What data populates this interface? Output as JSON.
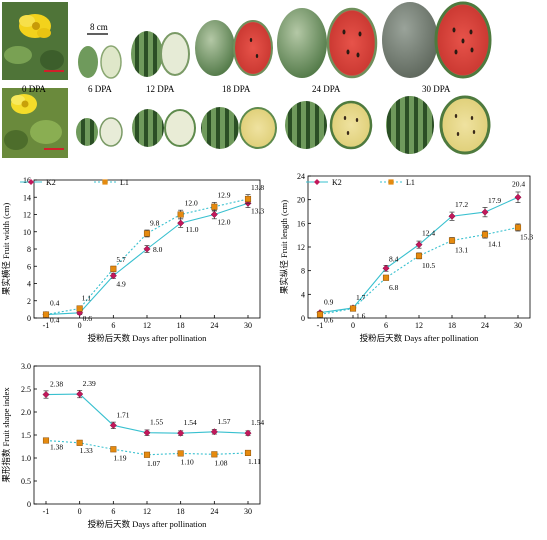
{
  "photo_panel": {
    "scale_label": "8 cm",
    "labels": [
      "0 DPA",
      "6 DPA",
      "12 DPA",
      "18 DPA",
      "24 DPA",
      "30 DPA"
    ],
    "colors": {
      "rind_light": "#8fae7c",
      "rind_dark": "#3f6e39",
      "stripe": "#24461f",
      "flesh_white": "#e8ecd8",
      "flesh_yellow": "#e9dc8e",
      "flesh_red": "#d8443c",
      "seed": "#2a1a12",
      "scale_bar": "#d0202a"
    }
  },
  "series_style": {
    "K2": {
      "color": "#38c0cf",
      "marker": "#c2185b",
      "dash": "solid"
    },
    "L1": {
      "color": "#38c0cf",
      "marker": "#e58a0f",
      "dash": "dotted"
    }
  },
  "chart_data": [
    {
      "type": "line",
      "x": [
        -1,
        0,
        6,
        12,
        18,
        24,
        30
      ],
      "xlabel": "授粉后天数 Days after pollination",
      "ylabel": "果实横径 Fruit width (cm)",
      "ylim": [
        0,
        16
      ],
      "yticks": [
        0,
        2,
        4,
        6,
        8,
        10,
        12,
        14,
        16
      ],
      "legend_position": "top-left",
      "series": [
        {
          "name": "K2",
          "values": [
            0.4,
            0.6,
            4.9,
            8.0,
            11.0,
            12.0,
            13.3
          ],
          "err": [
            0.1,
            0.2,
            0.3,
            0.4,
            0.5,
            0.5,
            0.5
          ]
        },
        {
          "name": "L1",
          "values": [
            0.4,
            1.1,
            5.7,
            9.8,
            12.0,
            12.9,
            13.8
          ],
          "err": [
            0.1,
            0.2,
            0.3,
            0.4,
            0.5,
            0.5,
            0.5
          ]
        }
      ],
      "data_labels": [
        {
          "text": "0.4",
          "series": 1,
          "i": 0,
          "dx": 4,
          "dy": -9
        },
        {
          "text": "0.4",
          "series": 0,
          "i": 0,
          "dx": 4,
          "dy": 8
        },
        {
          "text": "1.1",
          "series": 1,
          "i": 1,
          "dx": 2,
          "dy": -8
        },
        {
          "text": "0.6",
          "series": 0,
          "i": 1,
          "dx": 3,
          "dy": 8
        },
        {
          "text": "5.7",
          "series": 1,
          "i": 2,
          "dx": 3,
          "dy": -7
        },
        {
          "text": "4.9",
          "series": 0,
          "i": 2,
          "dx": 3,
          "dy": 11
        },
        {
          "text": "9.8",
          "series": 1,
          "i": 3,
          "dx": 3,
          "dy": -8
        },
        {
          "text": "8.0",
          "series": 0,
          "i": 3,
          "dx": 6,
          "dy": 3
        },
        {
          "text": "12.0",
          "series": 1,
          "i": 4,
          "dx": 4,
          "dy": -9
        },
        {
          "text": "11.0",
          "series": 0,
          "i": 4,
          "dx": 5,
          "dy": 9
        },
        {
          "text": "12.9",
          "series": 1,
          "i": 5,
          "dx": 3,
          "dy": -9
        },
        {
          "text": "12.0",
          "series": 0,
          "i": 5,
          "dx": 3,
          "dy": 10
        },
        {
          "text": "13.8",
          "series": 1,
          "i": 6,
          "dx": 3,
          "dy": -9
        },
        {
          "text": "13.3",
          "series": 0,
          "i": 6,
          "dx": 3,
          "dy": 10
        }
      ]
    },
    {
      "type": "line",
      "x": [
        -1,
        0,
        6,
        12,
        18,
        24,
        30
      ],
      "xlabel": "授粉后天数 Days after pollination",
      "ylabel": "果实纵径 Fruit length (cm)",
      "ylim": [
        0,
        24
      ],
      "yticks": [
        0,
        4,
        8,
        12,
        16,
        20,
        24
      ],
      "legend_position": "top-left",
      "series": [
        {
          "name": "K2",
          "values": [
            0.9,
            1.7,
            8.4,
            12.4,
            17.2,
            17.9,
            20.4
          ],
          "err": [
            0.2,
            0.2,
            0.5,
            0.6,
            0.7,
            0.8,
            0.9
          ]
        },
        {
          "name": "L1",
          "values": [
            0.6,
            1.6,
            6.8,
            10.5,
            13.1,
            14.1,
            15.3
          ],
          "err": [
            0.2,
            0.2,
            0.4,
            0.5,
            0.5,
            0.6,
            0.6
          ]
        }
      ],
      "data_labels": [
        {
          "text": "0.9",
          "series": 0,
          "i": 0,
          "dx": 4,
          "dy": -8
        },
        {
          "text": "0.6",
          "series": 1,
          "i": 0,
          "dx": 4,
          "dy": 8
        },
        {
          "text": "1.7",
          "series": 0,
          "i": 1,
          "dx": 3,
          "dy": -8
        },
        {
          "text": "1.6",
          "series": 1,
          "i": 1,
          "dx": 3,
          "dy": 10
        },
        {
          "text": "8.4",
          "series": 0,
          "i": 2,
          "dx": 3,
          "dy": -7
        },
        {
          "text": "6.8",
          "series": 1,
          "i": 2,
          "dx": 3,
          "dy": 12
        },
        {
          "text": "12.4",
          "series": 0,
          "i": 3,
          "dx": 3,
          "dy": -9
        },
        {
          "text": "10.5",
          "series": 1,
          "i": 3,
          "dx": 3,
          "dy": 12
        },
        {
          "text": "17.2",
          "series": 0,
          "i": 4,
          "dx": 3,
          "dy": -9
        },
        {
          "text": "13.1",
          "series": 1,
          "i": 4,
          "dx": 3,
          "dy": 12
        },
        {
          "text": "17.9",
          "series": 0,
          "i": 5,
          "dx": 3,
          "dy": -9
        },
        {
          "text": "14.1",
          "series": 1,
          "i": 5,
          "dx": 3,
          "dy": 12
        },
        {
          "text": "20.4",
          "series": 0,
          "i": 6,
          "dx": -6,
          "dy": -11
        },
        {
          "text": "15.3",
          "series": 1,
          "i": 6,
          "dx": 2,
          "dy": 12
        }
      ]
    },
    {
      "type": "line",
      "x": [
        -1,
        0,
        6,
        12,
        18,
        24,
        30
      ],
      "xlabel": "授粉后天数 Days after pollination",
      "ylabel": "果形指数 Fruit shape index",
      "ylim": [
        0,
        3.0
      ],
      "yticks": [
        0,
        0.5,
        1.0,
        1.5,
        2.0,
        2.5,
        3.0
      ],
      "legend_position": "none",
      "series": [
        {
          "name": "K2",
          "values": [
            2.38,
            2.39,
            1.71,
            1.55,
            1.54,
            1.57,
            1.54
          ],
          "err": [
            0.08,
            0.08,
            0.07,
            0.06,
            0.05,
            0.05,
            0.05
          ]
        },
        {
          "name": "L1",
          "values": [
            1.38,
            1.33,
            1.19,
            1.07,
            1.1,
            1.08,
            1.11
          ],
          "err": [
            0.04,
            0.04,
            0.03,
            0.03,
            0.03,
            0.03,
            0.03
          ]
        }
      ],
      "data_labels": [
        {
          "text": "2.38",
          "series": 0,
          "i": 0,
          "dx": 4,
          "dy": -8
        },
        {
          "text": "1.38",
          "series": 1,
          "i": 0,
          "dx": 4,
          "dy": 9
        },
        {
          "text": "2.39",
          "series": 0,
          "i": 1,
          "dx": 3,
          "dy": -8
        },
        {
          "text": "1.33",
          "series": 1,
          "i": 1,
          "dx": 0,
          "dy": 10
        },
        {
          "text": "1.71",
          "series": 0,
          "i": 2,
          "dx": 3,
          "dy": -8
        },
        {
          "text": "1.19",
          "series": 1,
          "i": 2,
          "dx": 0,
          "dy": 11
        },
        {
          "text": "1.55",
          "series": 0,
          "i": 3,
          "dx": 3,
          "dy": -8
        },
        {
          "text": "1.07",
          "series": 1,
          "i": 3,
          "dx": 0,
          "dy": 11
        },
        {
          "text": "1.54",
          "series": 0,
          "i": 4,
          "dx": 3,
          "dy": -8
        },
        {
          "text": "1.10",
          "series": 1,
          "i": 4,
          "dx": 0,
          "dy": 11
        },
        {
          "text": "1.57",
          "series": 0,
          "i": 5,
          "dx": 3,
          "dy": -8
        },
        {
          "text": "1.08",
          "series": 1,
          "i": 5,
          "dx": 0,
          "dy": 11
        },
        {
          "text": "1.54",
          "series": 0,
          "i": 6,
          "dx": 3,
          "dy": -8
        },
        {
          "text": "1.11",
          "series": 1,
          "i": 6,
          "dx": 0,
          "dy": 11
        }
      ]
    }
  ]
}
